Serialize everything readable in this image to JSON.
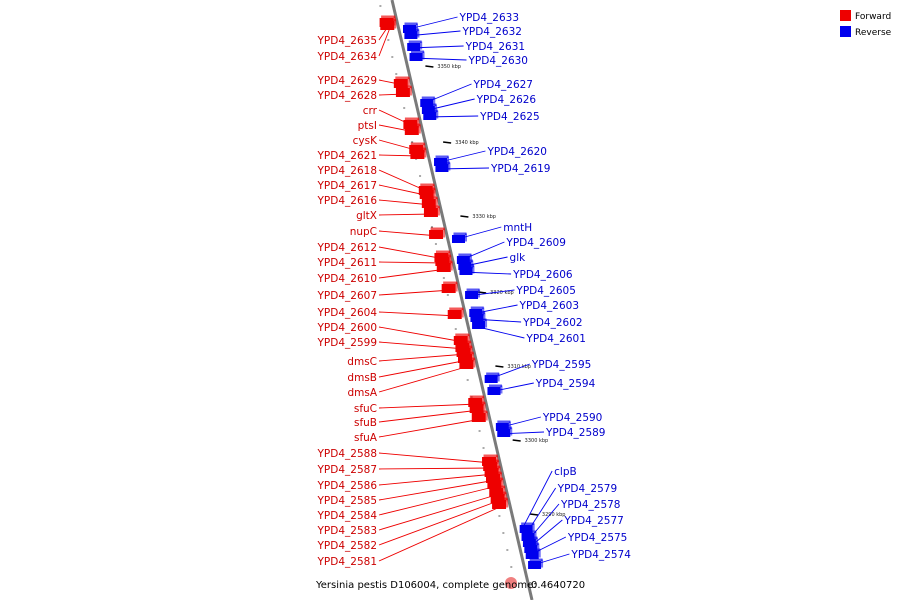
{
  "legend": {
    "forward_label": "Forward",
    "reverse_label": "Reverse",
    "forward_color": "#ee0000",
    "reverse_color": "#0000ee"
  },
  "caption": {
    "organism": "Yersinia pestis D106004, complete genome:",
    "value": "0.4640720"
  },
  "scale_ticks": [
    "3350 kbp",
    "3340 kbp",
    "3330 kbp",
    "3320 kbp",
    "3310 kbp",
    "3300 kbp",
    "3290 kbp"
  ],
  "forward_genes": [
    "YPD4_2635",
    "YPD4_2634",
    "YPD4_2629",
    "YPD4_2628",
    "crr",
    "ptsI",
    "cysK",
    "YPD4_2621",
    "YPD4_2618",
    "YPD4_2617",
    "YPD4_2616",
    "gltX",
    "nupC",
    "YPD4_2612",
    "YPD4_2611",
    "YPD4_2610",
    "YPD4_2607",
    "YPD4_2604",
    "YPD4_2600",
    "YPD4_2599",
    "dmsC",
    "dmsB",
    "dmsA",
    "sfuC",
    "sfuB",
    "sfuA",
    "YPD4_2588",
    "YPD4_2587",
    "YPD4_2586",
    "YPD4_2585",
    "YPD4_2584",
    "YPD4_2583",
    "YPD4_2582",
    "YPD4_2581"
  ],
  "reverse_genes": [
    "YPD4_2633",
    "YPD4_2632",
    "YPD4_2631",
    "YPD4_2630",
    "YPD4_2627",
    "YPD4_2626",
    "YPD4_2625",
    "YPD4_2620",
    "YPD4_2619",
    "mntH",
    "YPD4_2609",
    "glk",
    "YPD4_2606",
    "YPD4_2605",
    "YPD4_2603",
    "YPD4_2602",
    "YPD4_2601",
    "YPD4_2595",
    "YPD4_2594",
    "YPD4_2590",
    "YPD4_2589",
    "clpB",
    "YPD4_2579",
    "YPD4_2578",
    "YPD4_2577",
    "YPD4_2575",
    "YPD4_2574"
  ]
}
